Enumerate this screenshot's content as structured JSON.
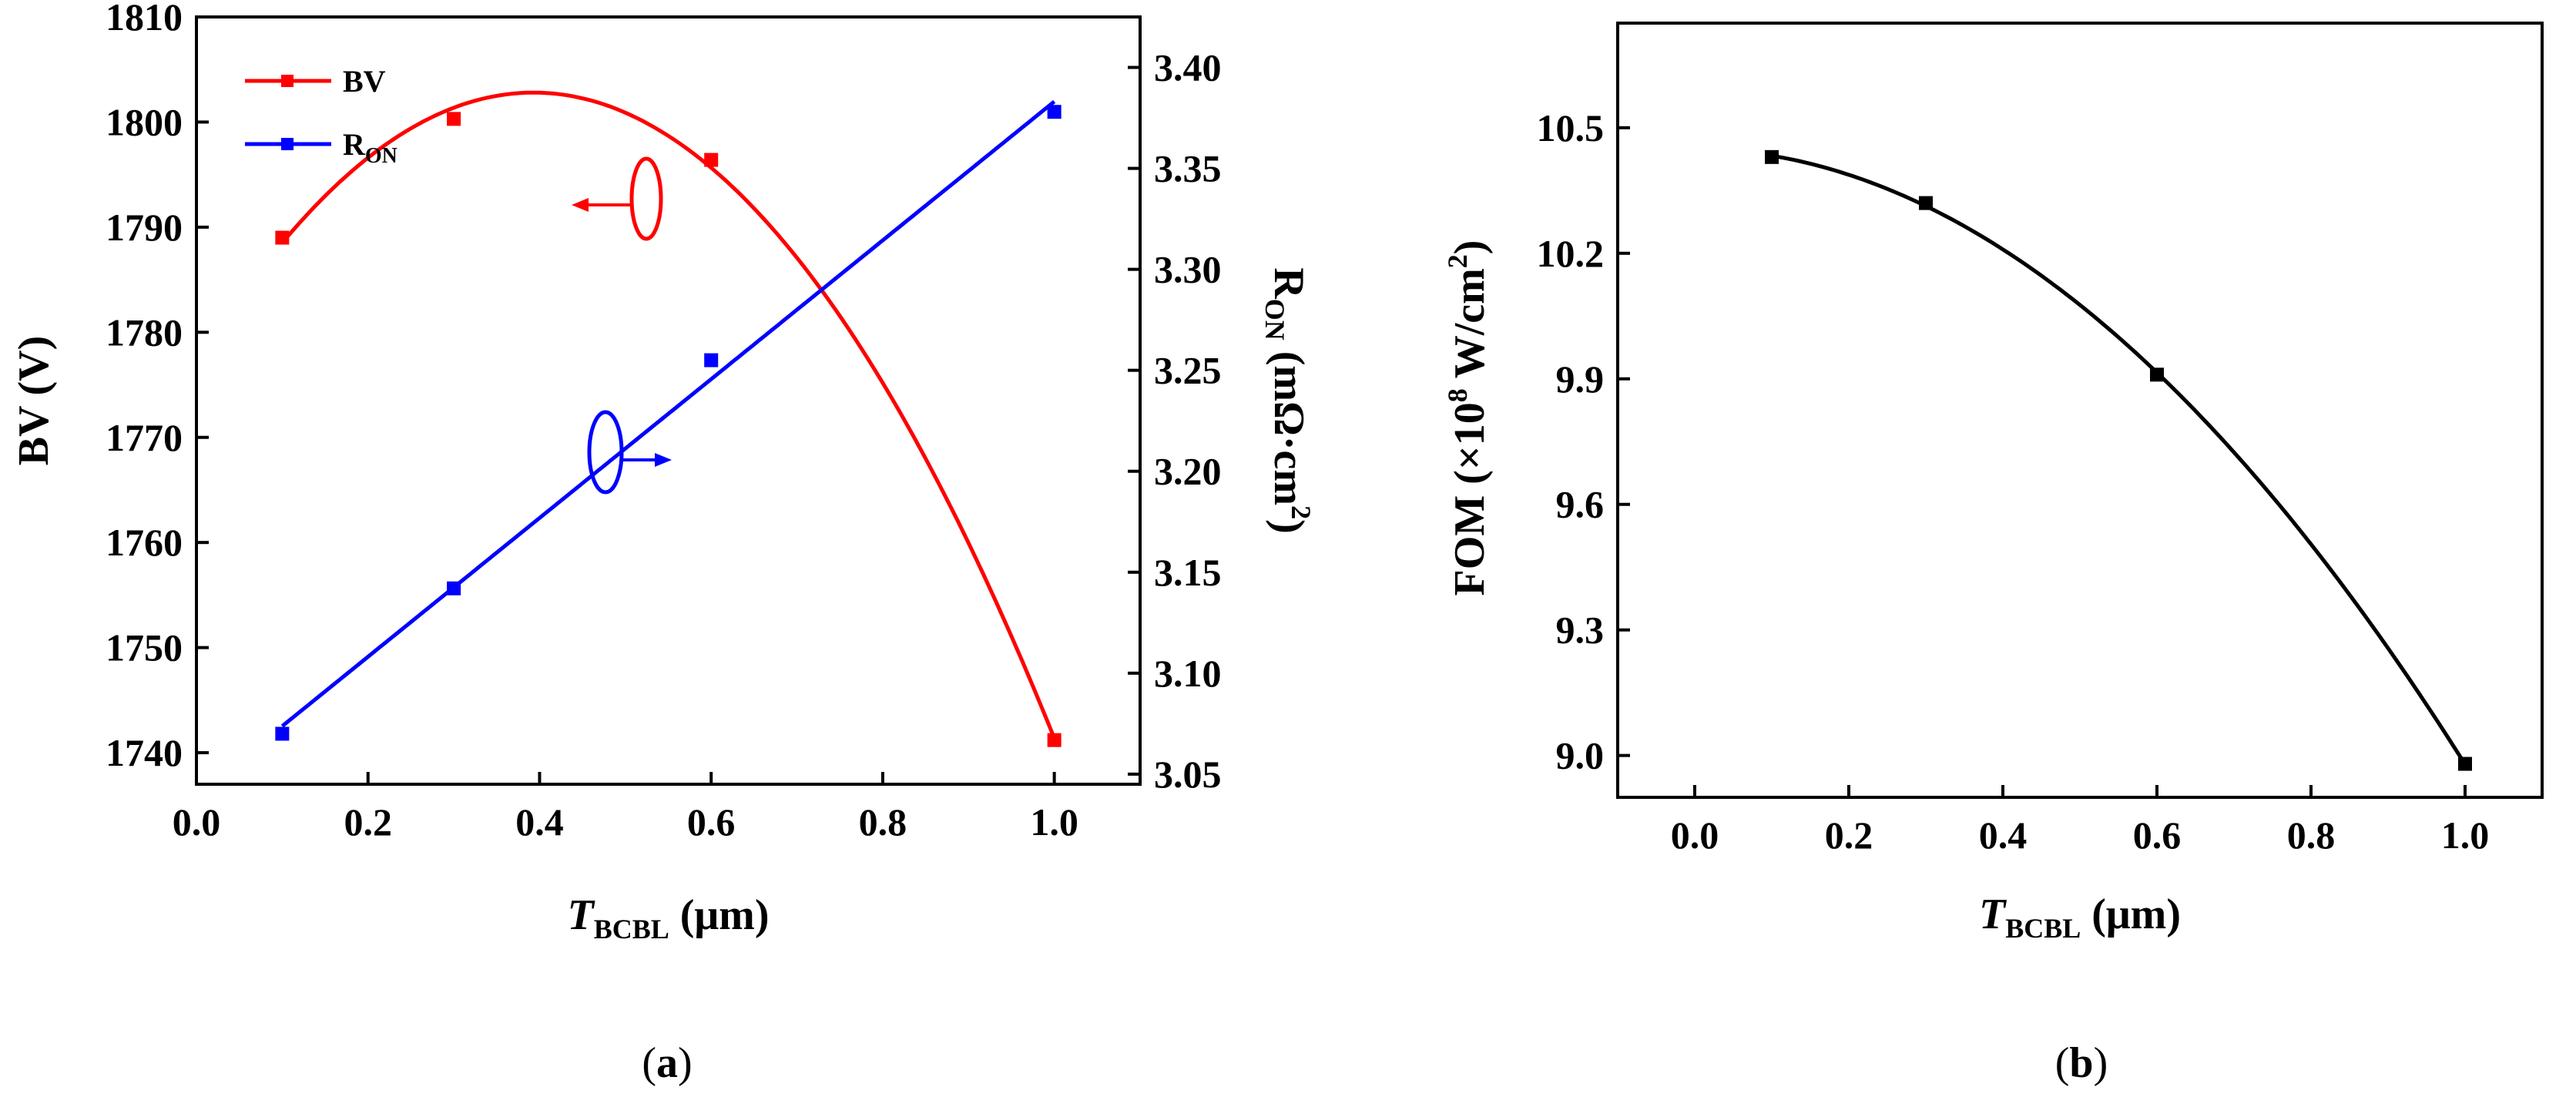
{
  "chart_data": [
    {
      "id": "panel-a",
      "type": "line",
      "panel_label_open": "(",
      "panel_label_letter": "a",
      "panel_label_close": ")",
      "x": [
        0.1,
        0.3,
        0.6,
        1.0
      ],
      "xlim": [
        0.0,
        1.1
      ],
      "xticks": [
        "0.0",
        "0.2",
        "0.4",
        "0.6",
        "0.8",
        "1.0"
      ],
      "xlabel": {
        "main": "T",
        "sub": "BCBL",
        "rest": " (μm)"
      },
      "ylabel_left": "BV (V)",
      "ylim_left": [
        1737,
        1810
      ],
      "yticks_left": [
        "1740",
        "1750",
        "1760",
        "1770",
        "1780",
        "1790",
        "1800",
        "1810"
      ],
      "ylabel_right": {
        "main": "R",
        "sub": "ON",
        "rest": " (mΩ·cm",
        "sup": "2",
        "close": ")"
      },
      "ylim_right": [
        3.045,
        3.425
      ],
      "yticks_right": [
        "3.05",
        "3.10",
        "3.15",
        "3.20",
        "3.25",
        "3.30",
        "3.35",
        "3.40"
      ],
      "series": [
        {
          "name": "BV",
          "legend_main": "BV",
          "legend_sub": "",
          "axis": "left",
          "color": "#ff0000",
          "values": [
            1789,
            1800.3,
            1796.4,
            1741.2
          ],
          "fit": "quadratic"
        },
        {
          "name": "RON",
          "legend_main": "R",
          "legend_sub": "ON",
          "axis": "right",
          "color": "#0000ff",
          "values": [
            3.07,
            3.142,
            3.255,
            3.378
          ],
          "fit": "linear"
        }
      ]
    },
    {
      "id": "panel-b",
      "type": "line",
      "panel_label_open": "(",
      "panel_label_letter": "b",
      "panel_label_close": ")",
      "x": [
        0.1,
        0.3,
        0.6,
        1.0
      ],
      "xlim": [
        -0.1,
        1.1
      ],
      "xticks": [
        "0.0",
        "0.2",
        "0.4",
        "0.6",
        "0.8",
        "1.0"
      ],
      "xlabel": {
        "main": "T",
        "sub": "BCBL",
        "rest": " (μm)"
      },
      "ylabel": {
        "pre": "FOM (×10",
        "sup1": "8",
        "mid": " W/cm",
        "sup2": "2",
        "close": ")"
      },
      "ylim": [
        8.9,
        10.75
      ],
      "yticks": [
        "9.0",
        "9.3",
        "9.6",
        "9.9",
        "10.2",
        "10.5"
      ],
      "series": [
        {
          "name": "FOM",
          "color": "#000000",
          "values": [
            10.43,
            10.32,
            9.91,
            8.98
          ],
          "fit": "quadratic"
        }
      ]
    }
  ]
}
